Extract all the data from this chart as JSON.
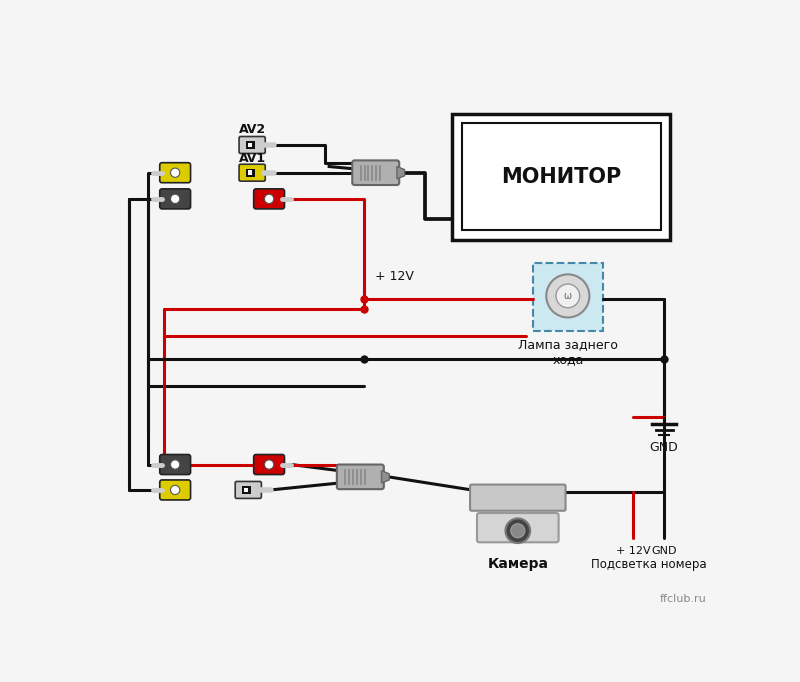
{
  "bg_color": "#f5f5f5",
  "monitor_label": "МОНИТОР",
  "lamp_label": "Лампа заднего\nхода",
  "gnd_label": "GND",
  "camera_label": "Камера",
  "license_label": "Подсветка номера",
  "plus12v_label_top": "+ 12V",
  "plus12v_label_bot": "+ 12V",
  "gnd_label_bot": "GND",
  "av1_label": "AV1",
  "av2_label": "AV2",
  "ffclub_label": "ffclub.ru",
  "BLACK": "#111111",
  "RED": "#cc0000",
  "YELLOW": "#ddcc00",
  "GRAY": "#aaaaaa",
  "LGRAY": "#cccccc",
  "DGRAY": "#555555",
  "lamp_fill": "#cce8f0",
  "lamp_border": "#4488aa",
  "LW": 2.2
}
